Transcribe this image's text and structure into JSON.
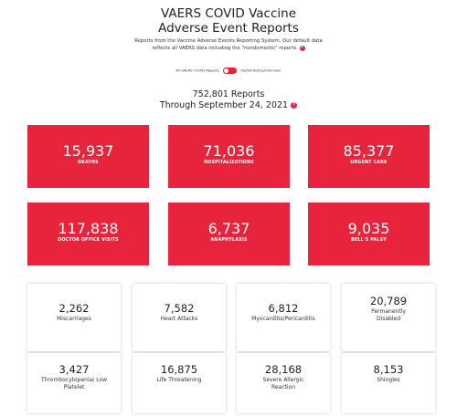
{
  "header": {
    "title_line1": "VAERS COVID Vaccine",
    "title_line2": "Adverse Event Reports",
    "intro_line1": "Reports from the Vaccine Adverse Events Reporting System. Our default data",
    "intro_line2": "reflects all VAERS data including the \"nondomestic\" reports.",
    "info_icon": "?"
  },
  "toggle": {
    "left_label": "All VAERS COVID Reports",
    "right_label": "US/Territories/Unknown",
    "state": "on",
    "color": "#e8243c"
  },
  "summary": {
    "reports": "752,801 Reports",
    "through": "Through September 24, 2021"
  },
  "colors": {
    "accent": "#e8243c"
  },
  "red_cards": [
    {
      "value": "15,937",
      "label": "DEATHS"
    },
    {
      "value": "71,036",
      "label": "HOSPITALIZATIONS"
    },
    {
      "value": "85,377",
      "label": "URGENT CARE"
    },
    {
      "value": "117,838",
      "label": "DOCTOR OFFICE VISITS"
    },
    {
      "value": "6,737",
      "label": "ANAPHYLAXIS"
    },
    {
      "value": "9,035",
      "label": "BELL'S PALSY"
    }
  ],
  "white_cards": [
    {
      "value": "2,262",
      "label": "Miscarriages"
    },
    {
      "value": "7,582",
      "label": "Heart Attacks"
    },
    {
      "value": "6,812",
      "label": "Myocarditis/Pericarditis"
    },
    {
      "value": "20,789",
      "label": "Permanently Disabled"
    },
    {
      "value": "3,427",
      "label": "Thrombocytopenia/ Low Platelet"
    },
    {
      "value": "16,875",
      "label": "Life Threatening"
    },
    {
      "value": "28,168",
      "label": "Severe Allergic Reaction"
    },
    {
      "value": "8,153",
      "label": "Shingles"
    }
  ]
}
